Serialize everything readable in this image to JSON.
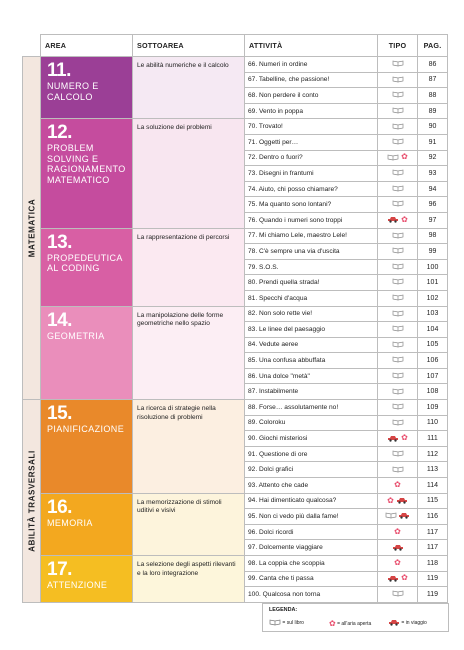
{
  "headers": {
    "area": "AREA",
    "sottoarea": "SOTTOAREA",
    "attivita": "ATTIVITÀ",
    "tipo": "TIPO",
    "pag": "PAG."
  },
  "macro": [
    {
      "label": "MATEMATICA",
      "color": "#f3e7df"
    },
    {
      "label": "ABILITÀ TRASVERSALI",
      "color": "#f3e7df"
    }
  ],
  "areas": [
    {
      "num": "11.",
      "name": "NUMERO E CALCOLO",
      "color": "#9b3f96",
      "sub": "Le abilità numeriche e il calcolo",
      "sub_bg": "#f5e9f3"
    },
    {
      "num": "12.",
      "name": "PROBLEM SOLVING E RAGIONAMENTO MATEMATICO",
      "color": "#c54c9e",
      "sub": "La soluzione dei problemi",
      "sub_bg": "#f8e6f0"
    },
    {
      "num": "13.",
      "name": "PROPEDEUTICA AL CODING",
      "color": "#d85fa4",
      "sub": "La rappresentazione di percorsi",
      "sub_bg": "#fbe9f1"
    },
    {
      "num": "14.",
      "name": "GEOMETRIA",
      "color": "#ea8ebb",
      "sub": "La manipolazione delle forme geometriche nello spazio",
      "sub_bg": "#fceef4"
    },
    {
      "num": "15.",
      "name": "PIANIFICAZIONE",
      "color": "#e9892a",
      "sub": "La ricerca di strategie nella risoluzione di problemi",
      "sub_bg": "#fcefe1"
    },
    {
      "num": "16.",
      "name": "MEMORIA",
      "color": "#f3a81f",
      "sub": "La memorizzazione di stimoli uditivi e visivi",
      "sub_bg": "#fdf4dc"
    },
    {
      "num": "17.",
      "name": "ATTENZIONE",
      "color": "#f5be22",
      "sub": "La selezione degli aspetti rilevanti e la loro integrazione",
      "sub_bg": "#fdf6db"
    }
  ],
  "activities": [
    {
      "a": "66. Numeri in ordine",
      "p": "86",
      "t": "libro",
      "area": 0
    },
    {
      "a": "67. Tabelline, che passione!",
      "p": "87",
      "t": "libro",
      "area": 0
    },
    {
      "a": "68. Non perdere il conto",
      "p": "88",
      "t": "libro",
      "area": 0
    },
    {
      "a": "69. Vento in poppa",
      "p": "89",
      "t": "libro",
      "area": 0
    },
    {
      "a": "70. Trovato!",
      "p": "90",
      "t": "libro",
      "area": 1
    },
    {
      "a": "71. Oggetti per…",
      "p": "91",
      "t": "libro",
      "area": 1
    },
    {
      "a": "72. Dentro o fuori?",
      "p": "92",
      "t": "libro+star",
      "area": 1
    },
    {
      "a": "73. Disegni in frantumi",
      "p": "93",
      "t": "libro",
      "area": 1
    },
    {
      "a": "74. Aiuto, chi posso chiamare?",
      "p": "94",
      "t": "libro",
      "area": 1
    },
    {
      "a": "75. Ma quanto sono lontani?",
      "p": "96",
      "t": "libro",
      "area": 1
    },
    {
      "a": "76. Quando i numeri sono troppi",
      "p": "97",
      "t": "car+star",
      "area": 1
    },
    {
      "a": "77. Mi chiamo Lele, maestro Lele!",
      "p": "98",
      "t": "libro",
      "area": 2
    },
    {
      "a": "78. C'è sempre una via d'uscita",
      "p": "99",
      "t": "libro",
      "area": 2
    },
    {
      "a": "79. S.O.S.",
      "p": "100",
      "t": "libro",
      "area": 2
    },
    {
      "a": "80. Prendi quella strada!",
      "p": "101",
      "t": "libro",
      "area": 2
    },
    {
      "a": "81. Specchi d'acqua",
      "p": "102",
      "t": "libro",
      "area": 2
    },
    {
      "a": "82. Non solo rette vie!",
      "p": "103",
      "t": "libro",
      "area": 3
    },
    {
      "a": "83. Le linee del paesaggio",
      "p": "104",
      "t": "libro",
      "area": 3
    },
    {
      "a": "84. Vedute aeree",
      "p": "105",
      "t": "libro",
      "area": 3
    },
    {
      "a": "85. Una confusa abbuffata",
      "p": "106",
      "t": "libro",
      "area": 3
    },
    {
      "a": "86. Una dolce \"metà\"",
      "p": "107",
      "t": "libro",
      "area": 3
    },
    {
      "a": "87. Instabilmente",
      "p": "108",
      "t": "libro",
      "area": 3
    },
    {
      "a": "88. Forse… assolutamente no!",
      "p": "109",
      "t": "libro",
      "area": 4
    },
    {
      "a": "89. Coloroku",
      "p": "110",
      "t": "libro",
      "area": 4
    },
    {
      "a": "90. Giochi misteriosi",
      "p": "111",
      "t": "car+star",
      "area": 4
    },
    {
      "a": "91. Questione di ore",
      "p": "112",
      "t": "libro",
      "area": 4
    },
    {
      "a": "92. Dolci grafici",
      "p": "113",
      "t": "libro",
      "area": 4
    },
    {
      "a": "93. Attento che cade",
      "p": "114",
      "t": "star",
      "area": 4
    },
    {
      "a": "94. Hai dimenticato qualcosa?",
      "p": "115",
      "t": "star+car",
      "area": 5
    },
    {
      "a": "95. Non ci vedo più dalla fame!",
      "p": "116",
      "t": "libro+car",
      "area": 5
    },
    {
      "a": "96. Dolci ricordi",
      "p": "117",
      "t": "star",
      "area": 5
    },
    {
      "a": "97. Dolcemente viaggiare",
      "p": "117",
      "t": "car",
      "area": 5
    },
    {
      "a": "98. La coppia che scoppia",
      "p": "118",
      "t": "star",
      "area": 6
    },
    {
      "a": "99. Canta che ti passa",
      "p": "119",
      "t": "car+star",
      "area": 6
    },
    {
      "a": "100. Qualcosa non torna",
      "p": "119",
      "t": "libro",
      "area": 6
    }
  ],
  "legend": {
    "title": "LEGENDA:",
    "libro": "= sul libro",
    "aperto": "= all'aria aperta",
    "viaggio": "= in viaggio"
  },
  "icons": {
    "libro": "book-icon",
    "star": "flower-icon",
    "car": "car-icon"
  },
  "colors": {
    "star": "#e84a6a",
    "car": "#d64545"
  }
}
